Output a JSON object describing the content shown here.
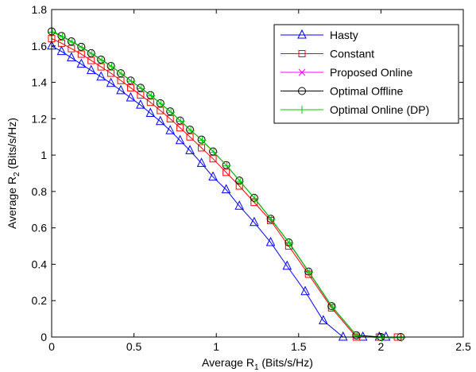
{
  "chart_data": {
    "type": "line",
    "title": "",
    "xlabel": {
      "main": "Average R",
      "sub": "1",
      "unit": " (Bits/s/Hz)"
    },
    "ylabel": {
      "main": "Average R",
      "sub": "2",
      "unit": " (Bits/s/Hz)"
    },
    "xlim": [
      0,
      2.5
    ],
    "ylim": [
      0,
      1.8
    ],
    "xticks": [
      0,
      0.5,
      1,
      1.5,
      2,
      2.5
    ],
    "xtick_labels": [
      "0",
      "0.5",
      "1",
      "1.5",
      "2",
      "2.5"
    ],
    "yticks": [
      0,
      0.2,
      0.4,
      0.6,
      0.8,
      1,
      1.2,
      1.4,
      1.6,
      1.8
    ],
    "ytick_labels": [
      "0",
      "0.2",
      "0.4",
      "0.6",
      "0.8",
      "1",
      "1.2",
      "1.4",
      "1.6",
      "1.8"
    ],
    "grid": false,
    "legend_position": "top-right",
    "series": [
      {
        "name": "Hasty",
        "color": "#0000ff",
        "marker": "triangle",
        "x": [
          0,
          0.06,
          0.12,
          0.18,
          0.24,
          0.3,
          0.36,
          0.42,
          0.48,
          0.54,
          0.6,
          0.66,
          0.72,
          0.78,
          0.84,
          0.91,
          0.98,
          1.06,
          1.14,
          1.23,
          1.33,
          1.43,
          1.54,
          1.65,
          1.77,
          1.89,
          1.99,
          2.03
        ],
        "y": [
          1.6,
          1.57,
          1.535,
          1.5,
          1.465,
          1.43,
          1.395,
          1.355,
          1.315,
          1.275,
          1.23,
          1.185,
          1.135,
          1.08,
          1.025,
          0.955,
          0.88,
          0.81,
          0.72,
          0.63,
          0.52,
          0.39,
          0.25,
          0.09,
          0,
          0,
          0,
          0
        ]
      },
      {
        "name": "Constant",
        "color": "#ff0000",
        "marker": "square",
        "x": [
          0,
          0.06,
          0.12,
          0.18,
          0.24,
          0.3,
          0.36,
          0.42,
          0.48,
          0.54,
          0.6,
          0.66,
          0.72,
          0.78,
          0.84,
          0.91,
          0.98,
          1.06,
          1.14,
          1.23,
          1.33,
          1.44,
          1.56,
          1.7,
          1.85,
          1.99,
          2.1
        ],
        "y": [
          1.64,
          1.615,
          1.585,
          1.555,
          1.52,
          1.485,
          1.45,
          1.41,
          1.37,
          1.33,
          1.29,
          1.245,
          1.2,
          1.15,
          1.1,
          1.04,
          0.98,
          0.905,
          0.83,
          0.74,
          0.64,
          0.5,
          0.345,
          0.16,
          0,
          0,
          0
        ],
        "points_override": true
      },
      {
        "name": "Proposed Online",
        "color": "#ff00ff",
        "marker": "x",
        "x": [],
        "y": []
      },
      {
        "name": "Optimal Offline",
        "color": "#000000",
        "marker": "circle",
        "x": [
          0,
          0.06,
          0.12,
          0.18,
          0.24,
          0.3,
          0.36,
          0.42,
          0.48,
          0.54,
          0.6,
          0.66,
          0.72,
          0.78,
          0.84,
          0.91,
          0.98,
          1.06,
          1.14,
          1.23,
          1.33,
          1.44,
          1.56,
          1.7,
          1.85,
          2.0,
          2.12
        ],
        "y": [
          1.68,
          1.655,
          1.625,
          1.595,
          1.56,
          1.525,
          1.49,
          1.45,
          1.41,
          1.37,
          1.33,
          1.285,
          1.24,
          1.19,
          1.14,
          1.085,
          1.02,
          0.945,
          0.86,
          0.765,
          0.65,
          0.52,
          0.36,
          0.17,
          0.01,
          0,
          0
        ]
      },
      {
        "name": "Optimal Online (DP)",
        "color": "#00cc00",
        "marker": "plus",
        "x": [],
        "y": []
      }
    ]
  }
}
